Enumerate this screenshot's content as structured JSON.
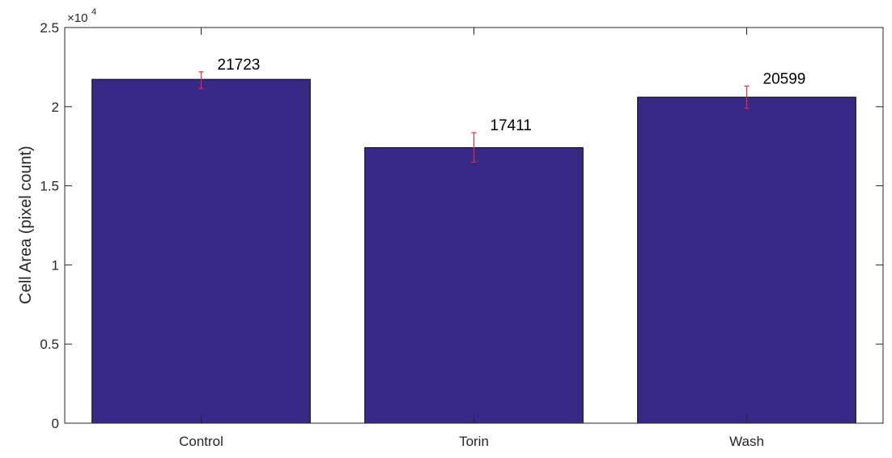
{
  "chart_data": {
    "type": "bar",
    "categories": [
      "Control",
      "Torin",
      "Wash"
    ],
    "values": [
      21723,
      17411,
      20599
    ],
    "value_labels": [
      "21723",
      "17411",
      "20599"
    ],
    "error_bars": [
      {
        "low": 21150,
        "high": 22200
      },
      {
        "low": 16500,
        "high": 18350
      },
      {
        "low": 19900,
        "high": 21300
      }
    ],
    "ylabel": "Cell Area (pixel count)",
    "xlabel": "",
    "ylim": [
      0,
      25000
    ],
    "yticks": [
      0,
      5000,
      10000,
      15000,
      20000,
      25000
    ],
    "ytick_labels": [
      "0",
      "0.5",
      "1",
      "1.5",
      "2",
      "2.5"
    ],
    "y_exponent_prefix": "×10",
    "y_exponent": "4",
    "grid": false,
    "colors": {
      "bar": "#372a86",
      "bar_edge": "#000000",
      "error_bar": "#e8283c",
      "axis": "#262626"
    }
  }
}
